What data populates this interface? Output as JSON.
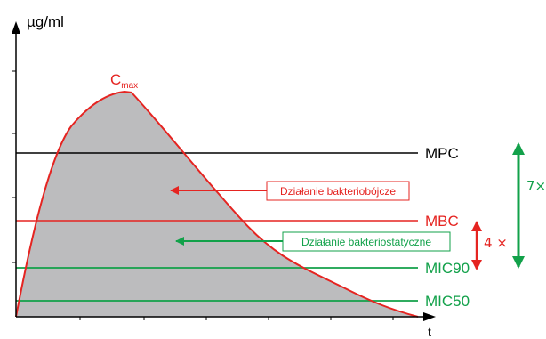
{
  "chart_data": {
    "type": "area",
    "ylabel": "µg/ml",
    "xlabel": "t",
    "peak": {
      "label_base": "C",
      "label_sub": "max"
    },
    "thresholds": [
      {
        "name": "MPC",
        "color": "#000000"
      },
      {
        "name": "MBC",
        "color": "#e52421"
      },
      {
        "name": "MIC90",
        "color": "#12a14a"
      },
      {
        "name": "MIC50",
        "color": "#12a14a"
      }
    ],
    "annotations": [
      {
        "text": "Działanie bakteriobójcze",
        "color": "#e52421"
      },
      {
        "text": "Działanie bakteriostatyczne",
        "color": "#12a14a"
      }
    ],
    "ratios": [
      {
        "text": "4 ×",
        "color": "#e52421"
      },
      {
        "text": "7×",
        "color": "#12a14a"
      }
    ],
    "colors": {
      "curve": "#e52421",
      "fill": "#bcbcbe",
      "axis": "#000000"
    }
  }
}
